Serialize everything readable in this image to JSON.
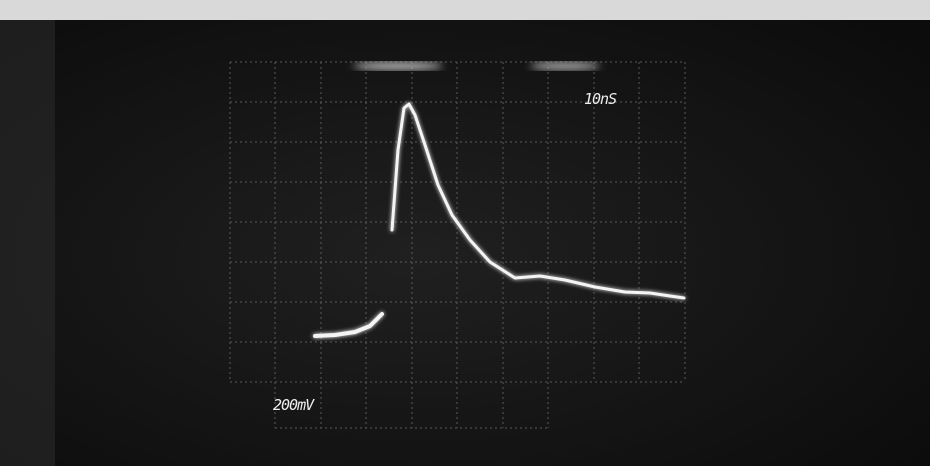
{
  "screen": {
    "time_label": "10nS",
    "volt_label": "200mV"
  }
}
